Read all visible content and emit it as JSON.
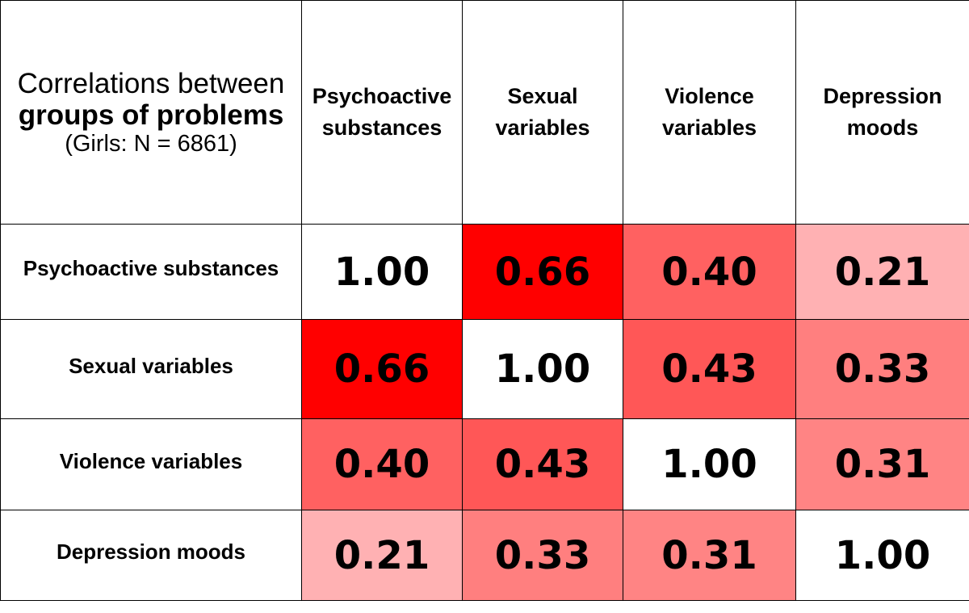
{
  "chart_data": {
    "type": "heatmap",
    "title": {
      "line1": "Correlations between",
      "line2": "groups of problems",
      "line3": "(Girls: N = 6861)"
    },
    "columns": [
      {
        "line1": "Psychoactive",
        "line2": "substances"
      },
      {
        "line1": "Sexual",
        "line2": "variables"
      },
      {
        "line1": "Violence",
        "line2": "variables"
      },
      {
        "line1": "Depression",
        "line2": "moods"
      }
    ],
    "rows": [
      "Psychoactive substances",
      "Sexual variables",
      "Violence variables",
      "Depression moods"
    ],
    "values": [
      [
        "1.00",
        "0.66",
        "0.40",
        "0.21"
      ],
      [
        "0.66",
        "1.00",
        "0.43",
        "0.33"
      ],
      [
        "0.40",
        "0.43",
        "1.00",
        "0.31"
      ],
      [
        "0.21",
        "0.33",
        "0.31",
        "1.00"
      ]
    ],
    "colors": {
      "diagonal": "#ffffff",
      "0.66": "#ff0000",
      "0.43": "#ff5757",
      "0.40": "#ff6161",
      "0.33": "#ff7f7f",
      "0.31": "#ff8484",
      "0.21": "#ffb1b3"
    }
  }
}
